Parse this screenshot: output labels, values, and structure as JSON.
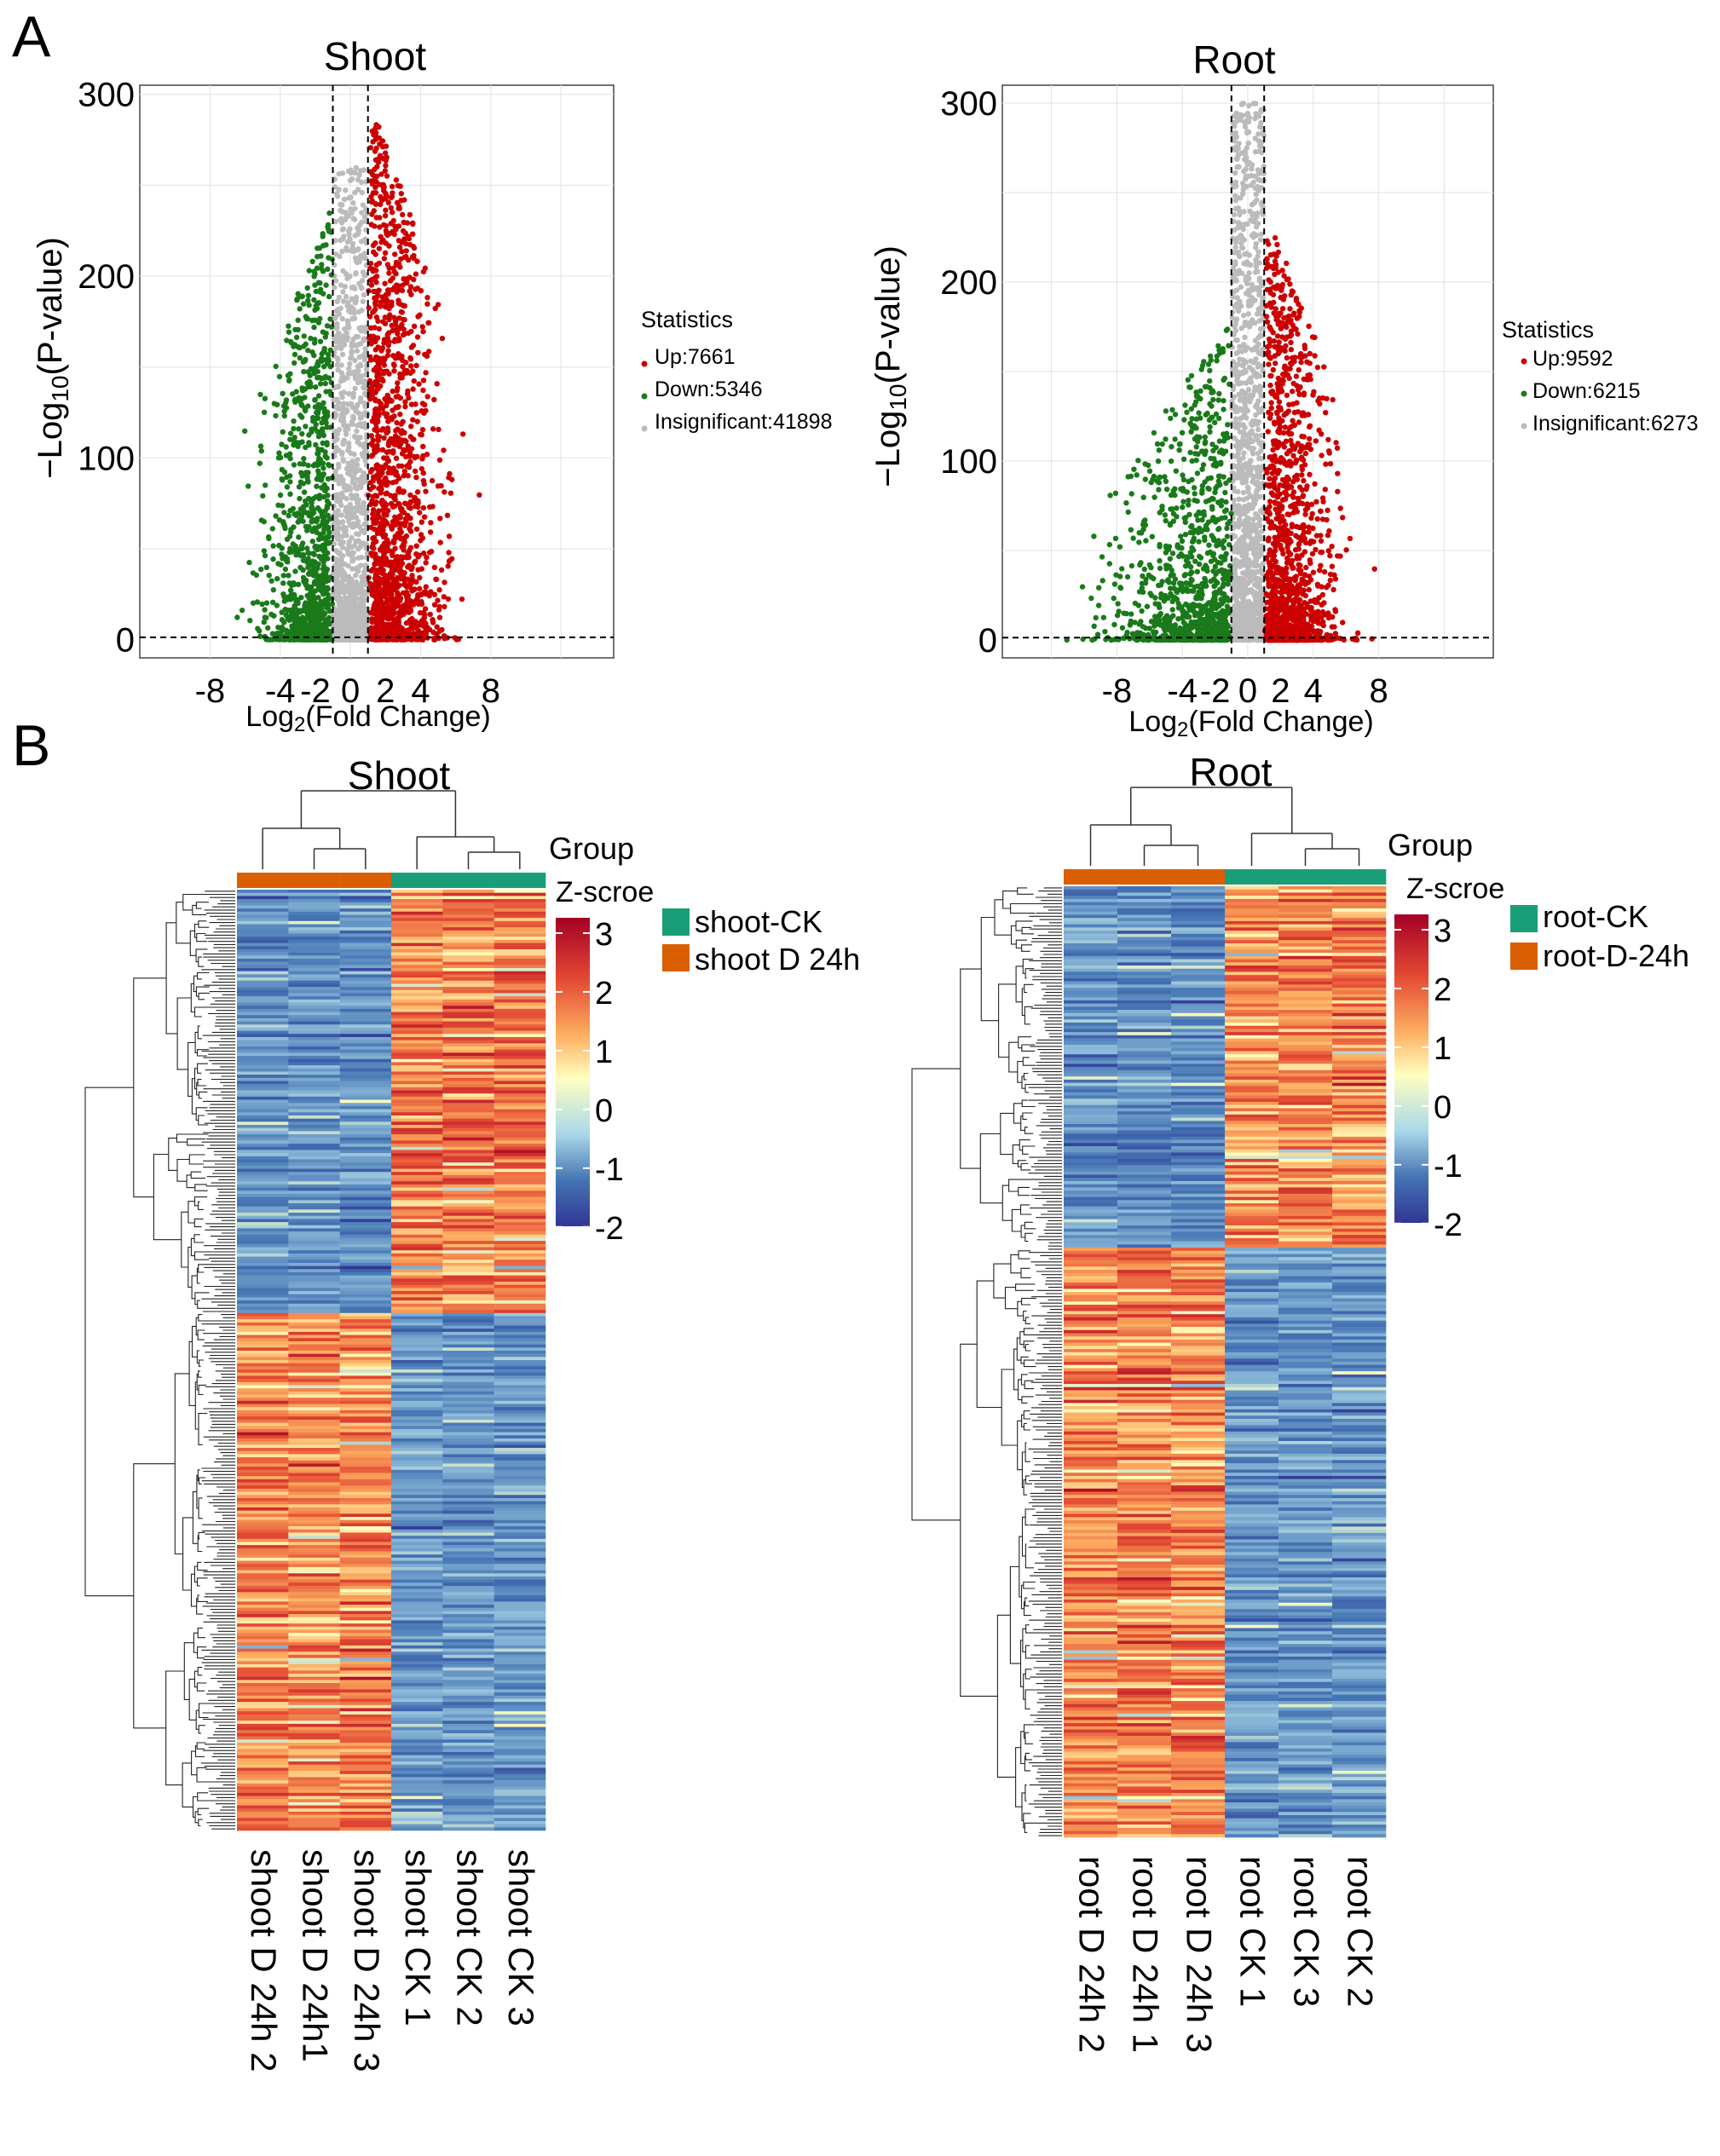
{
  "panel_labels": {
    "a": "A",
    "b": "B"
  },
  "colors": {
    "up": "#cc0000",
    "down": "#1a7a1a",
    "insig": "#bbbbbb",
    "ck": "#1a9e77",
    "d24": "#d95f02"
  },
  "chart_data": [
    {
      "type": "scatter",
      "title": "Shoot",
      "xlabel_main": "Log",
      "xlabel_sub": "2",
      "xlabel_rest": "(Fold Change)",
      "ylabel_prefix": "−Log",
      "ylabel_sub": "10",
      "ylabel_rest": "(P-value)",
      "xlim": [
        -12,
        15
      ],
      "ylim": [
        -10,
        305
      ],
      "xticks": [
        -8,
        -4,
        -2,
        0,
        2,
        4,
        8
      ],
      "yticks": [
        0,
        100,
        200,
        300
      ],
      "thresholds": {
        "x": [
          -1,
          1
        ],
        "y": 1.3
      },
      "legend": {
        "title": "Statistics",
        "entries": [
          "Up:7661",
          "Down:5346",
          "Insignificant:41898"
        ]
      },
      "series": [
        {
          "name": "Up",
          "count": 7661,
          "color": "#cc0000"
        },
        {
          "name": "Down",
          "count": 5346,
          "color": "#1a7a1a"
        },
        {
          "name": "Insignificant",
          "count": 41898,
          "color": "#bbbbbb"
        }
      ]
    },
    {
      "type": "scatter",
      "title": "Root",
      "xlabel_main": "Log",
      "xlabel_sub": "2",
      "xlabel_rest": "(Fold Change)",
      "ylabel_prefix": "−Log",
      "ylabel_sub": "10",
      "ylabel_rest": "(P-value)",
      "xlim": [
        -15,
        15
      ],
      "ylim": [
        -10,
        310
      ],
      "xticks": [
        -8,
        -4,
        -2,
        0,
        2,
        4,
        8
      ],
      "yticks": [
        0,
        100,
        200,
        300
      ],
      "thresholds": {
        "x": [
          -1,
          1
        ],
        "y": 1.3
      },
      "legend": {
        "title": "Statistics",
        "entries": [
          "Up:9592",
          "Down:6215",
          "Insignificant:6273"
        ]
      },
      "series": [
        {
          "name": "Up",
          "count": 9592,
          "color": "#cc0000"
        },
        {
          "name": "Down",
          "count": 6215,
          "color": "#1a7a1a"
        },
        {
          "name": "Insignificant",
          "count": 6273,
          "color": "#bbbbbb"
        }
      ]
    },
    {
      "type": "heatmap",
      "title": "Shoot",
      "group_title": "Group",
      "zscore_title": "Z-scroe",
      "zscore_ticks": [
        "3",
        "2",
        "1",
        "0",
        "-1",
        "-2"
      ],
      "columns": [
        "shoot D 24h 2",
        "shoot D 24h1",
        "shoot D 24h 3",
        "shoot CK 1",
        "shoot CK 2",
        "shoot CK 3"
      ],
      "column_groups": [
        "D",
        "D",
        "D",
        "CK",
        "CK",
        "CK"
      ],
      "group_legend": [
        "shoot-CK",
        "shoot D 24h"
      ],
      "split_fraction": 0.45
    },
    {
      "type": "heatmap",
      "title": "Root",
      "group_title": "Group",
      "zscore_title": "Z-scroe",
      "zscore_ticks": [
        "3",
        "2",
        "1",
        "0",
        "-1",
        "-2"
      ],
      "columns": [
        "root D 24h 2",
        "root D 24h 1",
        "root D 24h 3",
        "root CK 1",
        "root CK 3",
        "root CK 2"
      ],
      "column_groups": [
        "D",
        "D",
        "D",
        "CK",
        "CK",
        "CK"
      ],
      "group_legend": [
        "root-CK",
        "root-D-24h"
      ],
      "split_fraction": 0.38
    }
  ]
}
